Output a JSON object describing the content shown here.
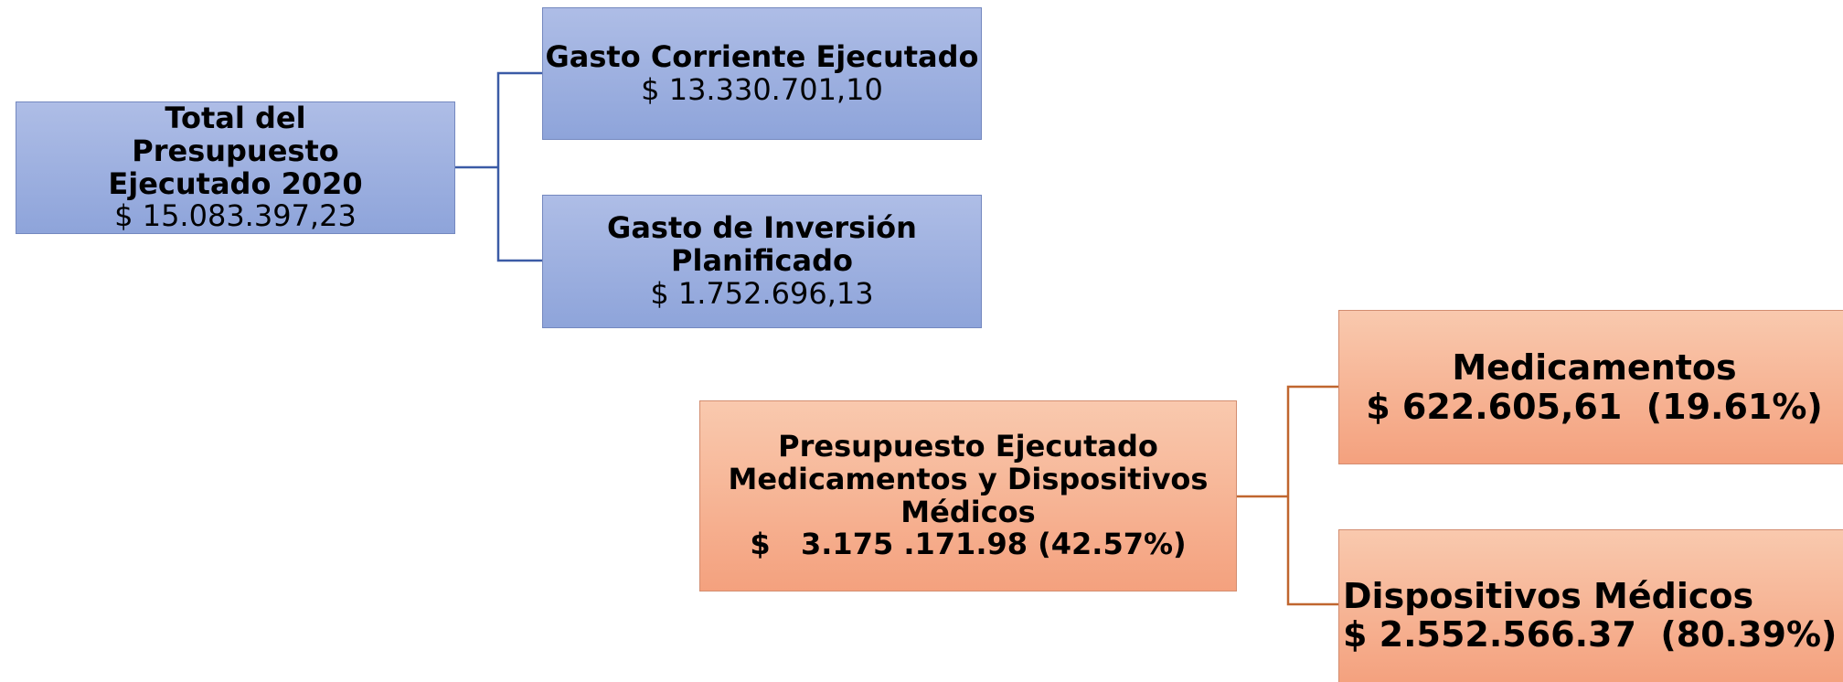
{
  "nodes": [
    {
      "title": "Total del Presupuesto Ejecutado 2020",
      "value": "$ 15.083.397,23"
    },
    {
      "title": "Gasto Corriente Ejecutado",
      "value": "$ 13.330.701,10"
    },
    {
      "title": "Gasto de Inversión Planificado",
      "value": "$ 1.752.696,13"
    },
    {
      "title": "Presupuesto Ejecutado Medicamentos y Dispositivos Médicos",
      "value": "$   3.175 .171.98 (42.57%)"
    },
    {
      "title": "Medicamentos",
      "value": "$ 622.605,61  (19.61%)"
    },
    {
      "title": "Dispositivos Médicos",
      "value": "$ 2.552.566.37  (80.39%)"
    }
  ]
}
